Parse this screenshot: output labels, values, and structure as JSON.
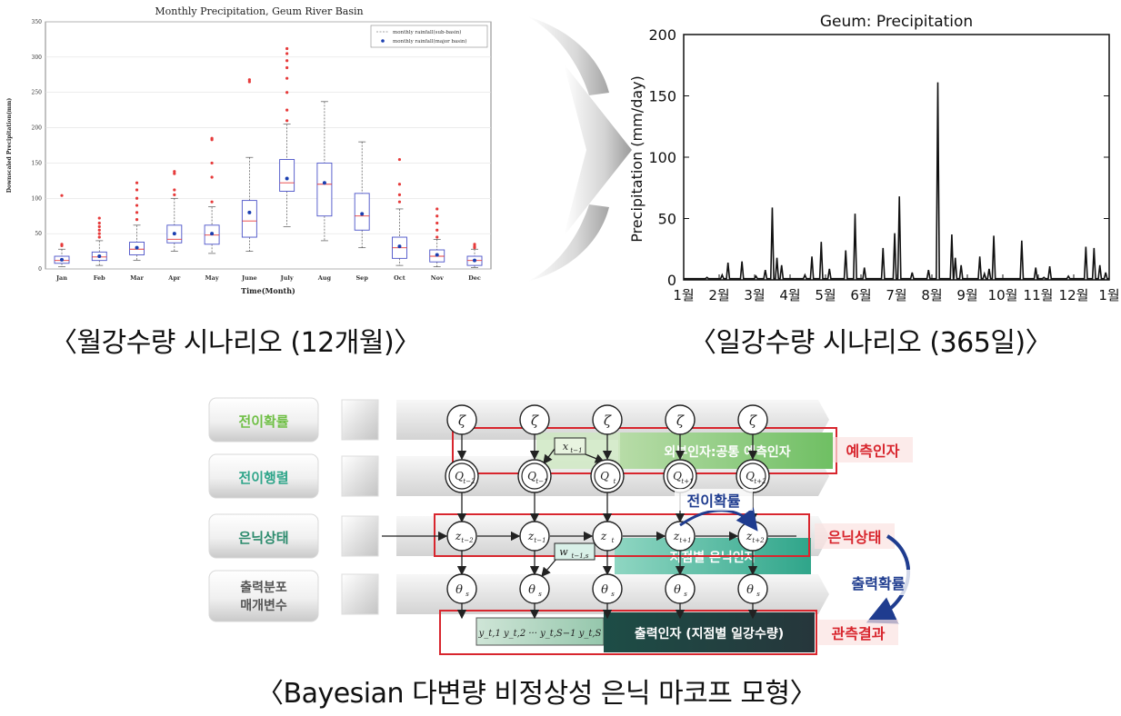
{
  "left_chart": {
    "title": "Monthly Precipitation, Geum River Basin",
    "ylabel": "Downscaled Precipitation(mm)",
    "xlabel": "Time(Month)",
    "legend": [
      "monthly rainfall(sub-basin)",
      "monthly rainfall(major basin)"
    ],
    "caption": "〈월강수량 시나리오 (12개월)〉"
  },
  "right_chart": {
    "title": "Geum: Precipitation",
    "ylabel": "Precipitation (mm/day)",
    "caption": "〈일강수량 시나리오 (365일)〉"
  },
  "chart_data": [
    {
      "type": "box",
      "title": "Monthly Precipitation, Geum River Basin",
      "xlabel": "Time(Month)",
      "ylabel": "Downscaled Precipitation(mm)",
      "ylim": [
        0,
        350
      ],
      "yticks": [
        0,
        50,
        100,
        150,
        200,
        250,
        300,
        350
      ],
      "categories": [
        "Jan",
        "Feb",
        "Mar",
        "Apr",
        "May",
        "June",
        "July",
        "Aug",
        "Sep",
        "Oct",
        "Nov",
        "Dec"
      ],
      "boxes": [
        {
          "min": 3,
          "q1": 8,
          "median": 12,
          "q3": 18,
          "max": 28,
          "mean": 13,
          "outliers": [
            33,
            35,
            104
          ]
        },
        {
          "min": 5,
          "q1": 12,
          "median": 17,
          "q3": 24,
          "max": 40,
          "mean": 18,
          "outliers": [
            45,
            50,
            55,
            60,
            65,
            72
          ]
        },
        {
          "min": 12,
          "q1": 20,
          "median": 28,
          "q3": 38,
          "max": 62,
          "mean": 30,
          "outliers": [
            70,
            80,
            90,
            100,
            112,
            122
          ]
        },
        {
          "min": 25,
          "q1": 37,
          "median": 42,
          "q3": 62,
          "max": 100,
          "mean": 50,
          "outliers": [
            105,
            112,
            135,
            138
          ]
        },
        {
          "min": 22,
          "q1": 35,
          "median": 48,
          "q3": 62,
          "max": 88,
          "mean": 50,
          "outliers": [
            95,
            130,
            150,
            183,
            185
          ]
        },
        {
          "min": 25,
          "q1": 45,
          "median": 68,
          "q3": 97,
          "max": 158,
          "mean": 80,
          "outliers": [
            265,
            268
          ]
        },
        {
          "min": 60,
          "q1": 110,
          "median": 122,
          "q3": 155,
          "max": 205,
          "mean": 128,
          "outliers": [
            210,
            225,
            250,
            270,
            285,
            295,
            305,
            312
          ]
        },
        {
          "min": 40,
          "q1": 75,
          "median": 120,
          "q3": 150,
          "max": 237,
          "mean": 122,
          "outliers": []
        },
        {
          "min": 30,
          "q1": 55,
          "median": 75,
          "q3": 107,
          "max": 180,
          "mean": 78,
          "outliers": []
        },
        {
          "min": 5,
          "q1": 15,
          "median": 30,
          "q3": 45,
          "max": 85,
          "mean": 32,
          "outliers": [
            95,
            105,
            120,
            155
          ]
        },
        {
          "min": 3,
          "q1": 10,
          "median": 18,
          "q3": 27,
          "max": 42,
          "mean": 20,
          "outliers": [
            45,
            55,
            65,
            75,
            85
          ]
        },
        {
          "min": 2,
          "q1": 5,
          "median": 12,
          "q3": 18,
          "max": 28,
          "mean": 12,
          "outliers": [
            30,
            32,
            35
          ]
        }
      ],
      "series_names": [
        "monthly rainfall(sub-basin)",
        "monthly rainfall(major basin)"
      ]
    },
    {
      "type": "line",
      "title": "Geum: Precipitation",
      "ylabel": "Precipitation (mm/day)",
      "ylim": [
        0,
        200
      ],
      "yticks": [
        0,
        50,
        100,
        150,
        200
      ],
      "xticks": [
        "1월",
        "2월",
        "3월",
        "4월",
        "5월",
        "6월",
        "7월",
        "8월",
        "9월",
        "10월",
        "11월",
        "12월",
        "1월"
      ],
      "peaks": [
        {
          "day": 20,
          "value": 2
        },
        {
          "day": 33,
          "value": 4
        },
        {
          "day": 38,
          "value": 14
        },
        {
          "day": 50,
          "value": 15
        },
        {
          "day": 62,
          "value": 3
        },
        {
          "day": 70,
          "value": 8
        },
        {
          "day": 76,
          "value": 59
        },
        {
          "day": 80,
          "value": 18
        },
        {
          "day": 84,
          "value": 12
        },
        {
          "day": 104,
          "value": 4
        },
        {
          "day": 110,
          "value": 19
        },
        {
          "day": 118,
          "value": 31
        },
        {
          "day": 125,
          "value": 9
        },
        {
          "day": 139,
          "value": 24
        },
        {
          "day": 147,
          "value": 54
        },
        {
          "day": 155,
          "value": 10
        },
        {
          "day": 171,
          "value": 26
        },
        {
          "day": 181,
          "value": 38
        },
        {
          "day": 185,
          "value": 68
        },
        {
          "day": 196,
          "value": 6
        },
        {
          "day": 210,
          "value": 8
        },
        {
          "day": 218,
          "value": 161
        },
        {
          "day": 230,
          "value": 37
        },
        {
          "day": 233,
          "value": 18
        },
        {
          "day": 238,
          "value": 12
        },
        {
          "day": 254,
          "value": 19
        },
        {
          "day": 258,
          "value": 5
        },
        {
          "day": 262,
          "value": 9
        },
        {
          "day": 266,
          "value": 36
        },
        {
          "day": 290,
          "value": 32
        },
        {
          "day": 302,
          "value": 10
        },
        {
          "day": 309,
          "value": 2
        },
        {
          "day": 314,
          "value": 11
        },
        {
          "day": 330,
          "value": 3
        },
        {
          "day": 345,
          "value": 27
        },
        {
          "day": 352,
          "value": 26
        },
        {
          "day": 357,
          "value": 12
        },
        {
          "day": 362,
          "value": 6
        }
      ]
    }
  ],
  "diagram": {
    "row_labels": [
      "전이확률",
      "전이행렬",
      "은닉상태",
      "출력분포\n매개변수"
    ],
    "zeta": "ζ",
    "q_nodes": [
      "Q",
      "Q",
      "Q",
      "Q",
      "Q"
    ],
    "q_subs": [
      "t−2",
      "t−1",
      "t",
      "t+1",
      "t+2"
    ],
    "z_subs": [
      "t−2",
      "t−1",
      "t",
      "t+1",
      "t+2"
    ],
    "theta": "θ",
    "theta_sub": "s",
    "x_box": "x",
    "x_sub": "t−1",
    "w_box": "w",
    "w_sub": "t−1,s",
    "y_seq": "y_t,1  y_t,2  ···  y_t,S−1 y_t,S",
    "bar_external": "외부인자:공통 예측인자",
    "bar_local": "지점별 은닉인자",
    "bar_output": "출력인자 (지점별 일강수량)",
    "label_predictor": "예측인자",
    "label_transition": "전이확률",
    "label_hidden": "은닉상태",
    "label_output_prob": "출력확률",
    "label_observed": "관측결과",
    "caption": "〈Bayesian 다변량 비정상성 은닉 마코프 모형〉"
  }
}
